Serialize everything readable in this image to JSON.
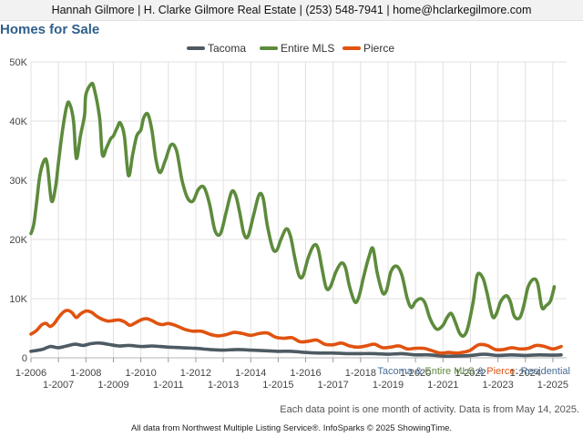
{
  "header": {
    "contact_line": "Hannah Gilmore | H. Clarke Gilmore Real Estate | (253) 548-7941 | home@hclarkegilmore.com"
  },
  "chart_title": "Homes for Sale",
  "subtitle": {
    "part1": "Tacoma",
    "amp1": " & ",
    "part2": "Entire MLS",
    "amp2": " & ",
    "part3": "Pierce",
    "suffix": ": Residential"
  },
  "footnote": "Each data point is one month of activity. Data is from May 14, 2025.",
  "credit": "All data from Northwest Multiple Listing Service®. InfoSparks © 2025 ShowingTime.",
  "colors": {
    "tacoma": "#4d5a63",
    "entire_mls": "#5d8b3c",
    "pierce": "#e0530f",
    "subtitle_blue": "#466d96",
    "grid": "#e0e0e0"
  },
  "chart_data": {
    "type": "line",
    "title": "Homes for Sale",
    "x_unit": "year",
    "xlim": [
      2006.0,
      2025.5
    ],
    "ylim": [
      0,
      50000
    ],
    "y_ticks": [
      0,
      10000,
      20000,
      30000,
      40000,
      50000
    ],
    "y_tick_labels": [
      "0",
      "10K",
      "20K",
      "30K",
      "40K",
      "50K"
    ],
    "x_ticks_top": [
      {
        "x": 2006,
        "label": "1-2006"
      },
      {
        "x": 2008,
        "label": "1-2008"
      },
      {
        "x": 2010,
        "label": "1-2010"
      },
      {
        "x": 2012,
        "label": "1-2012"
      },
      {
        "x": 2014,
        "label": "1-2014"
      },
      {
        "x": 2016,
        "label": "1-2016"
      },
      {
        "x": 2018,
        "label": "1-2018"
      },
      {
        "x": 2020,
        "label": "1-2020"
      },
      {
        "x": 2022,
        "label": "1-2022"
      },
      {
        "x": 2024,
        "label": "1-2024"
      }
    ],
    "x_ticks_bottom": [
      {
        "x": 2007,
        "label": "1-2007"
      },
      {
        "x": 2009,
        "label": "1-2009"
      },
      {
        "x": 2011,
        "label": "1-2011"
      },
      {
        "x": 2013,
        "label": "1-2013"
      },
      {
        "x": 2015,
        "label": "1-2015"
      },
      {
        "x": 2017,
        "label": "1-2017"
      },
      {
        "x": 2019,
        "label": "1-2019"
      },
      {
        "x": 2021,
        "label": "1-2021"
      },
      {
        "x": 2023,
        "label": "1-2023"
      },
      {
        "x": 2025,
        "label": "1-2025"
      }
    ],
    "grid": true,
    "legend_position": "top",
    "series": [
      {
        "name": "Tacoma",
        "color": "#4d5a63",
        "points": [
          [
            2006.0,
            1100
          ],
          [
            2006.4,
            1400
          ],
          [
            2006.7,
            1900
          ],
          [
            2007.0,
            1700
          ],
          [
            2007.3,
            2000
          ],
          [
            2007.6,
            2300
          ],
          [
            2007.9,
            2100
          ],
          [
            2008.2,
            2400
          ],
          [
            2008.5,
            2500
          ],
          [
            2008.8,
            2300
          ],
          [
            2009.2,
            2000
          ],
          [
            2009.6,
            2100
          ],
          [
            2010.0,
            1900
          ],
          [
            2010.4,
            2000
          ],
          [
            2010.7,
            1900
          ],
          [
            2011.0,
            1800
          ],
          [
            2011.5,
            1700
          ],
          [
            2012.0,
            1600
          ],
          [
            2012.5,
            1400
          ],
          [
            2013.0,
            1300
          ],
          [
            2013.5,
            1400
          ],
          [
            2014.0,
            1300
          ],
          [
            2014.5,
            1200
          ],
          [
            2015.0,
            1100
          ],
          [
            2015.5,
            1100
          ],
          [
            2016.0,
            900
          ],
          [
            2016.5,
            800
          ],
          [
            2017.0,
            800
          ],
          [
            2017.5,
            700
          ],
          [
            2018.0,
            700
          ],
          [
            2018.5,
            700
          ],
          [
            2019.0,
            600
          ],
          [
            2019.5,
            700
          ],
          [
            2020.0,
            500
          ],
          [
            2020.5,
            500
          ],
          [
            2021.0,
            300
          ],
          [
            2021.5,
            300
          ],
          [
            2022.0,
            400
          ],
          [
            2022.5,
            600
          ],
          [
            2023.0,
            400
          ],
          [
            2023.5,
            500
          ],
          [
            2024.0,
            400
          ],
          [
            2024.5,
            500
          ],
          [
            2025.0,
            450
          ],
          [
            2025.3,
            500
          ]
        ]
      },
      {
        "name": "Entire MLS",
        "color": "#5d8b3c",
        "points": [
          [
            2006.0,
            21000
          ],
          [
            2006.1,
            22500
          ],
          [
            2006.2,
            26000
          ],
          [
            2006.33,
            31000
          ],
          [
            2006.5,
            33500
          ],
          [
            2006.6,
            32500
          ],
          [
            2006.75,
            26500
          ],
          [
            2006.9,
            29000
          ],
          [
            2007.0,
            33000
          ],
          [
            2007.15,
            38500
          ],
          [
            2007.3,
            42500
          ],
          [
            2007.4,
            43000
          ],
          [
            2007.55,
            40000
          ],
          [
            2007.65,
            33700
          ],
          [
            2007.8,
            37500
          ],
          [
            2007.95,
            41000
          ],
          [
            2008.0,
            44500
          ],
          [
            2008.2,
            46300
          ],
          [
            2008.3,
            45500
          ],
          [
            2008.5,
            40500
          ],
          [
            2008.6,
            34300
          ],
          [
            2008.75,
            35500
          ],
          [
            2008.9,
            37000
          ],
          [
            2009.0,
            37500
          ],
          [
            2009.15,
            39000
          ],
          [
            2009.25,
            39700
          ],
          [
            2009.4,
            37500
          ],
          [
            2009.55,
            30800
          ],
          [
            2009.7,
            34300
          ],
          [
            2009.85,
            37500
          ],
          [
            2010.0,
            38500
          ],
          [
            2010.1,
            40500
          ],
          [
            2010.25,
            41200
          ],
          [
            2010.4,
            38500
          ],
          [
            2010.55,
            33500
          ],
          [
            2010.7,
            31300
          ],
          [
            2010.9,
            33500
          ],
          [
            2011.1,
            36000
          ],
          [
            2011.3,
            35000
          ],
          [
            2011.5,
            30000
          ],
          [
            2011.7,
            27000
          ],
          [
            2011.9,
            26500
          ],
          [
            2012.1,
            28500
          ],
          [
            2012.3,
            28800
          ],
          [
            2012.5,
            26000
          ],
          [
            2012.7,
            21500
          ],
          [
            2012.9,
            21000
          ],
          [
            2013.1,
            24500
          ],
          [
            2013.3,
            28000
          ],
          [
            2013.45,
            27500
          ],
          [
            2013.6,
            24500
          ],
          [
            2013.75,
            21000
          ],
          [
            2013.9,
            20500
          ],
          [
            2014.1,
            24000
          ],
          [
            2014.3,
            27500
          ],
          [
            2014.45,
            27000
          ],
          [
            2014.6,
            22500
          ],
          [
            2014.8,
            18500
          ],
          [
            2014.95,
            18200
          ],
          [
            2015.1,
            20000
          ],
          [
            2015.3,
            21800
          ],
          [
            2015.45,
            20500
          ],
          [
            2015.6,
            17000
          ],
          [
            2015.75,
            14000
          ],
          [
            2015.9,
            13800
          ],
          [
            2016.1,
            17000
          ],
          [
            2016.3,
            19000
          ],
          [
            2016.45,
            18500
          ],
          [
            2016.6,
            15000
          ],
          [
            2016.75,
            11800
          ],
          [
            2016.9,
            12000
          ],
          [
            2017.1,
            14500
          ],
          [
            2017.3,
            16000
          ],
          [
            2017.45,
            15200
          ],
          [
            2017.6,
            12000
          ],
          [
            2017.8,
            9400
          ],
          [
            2017.95,
            10500
          ],
          [
            2018.1,
            13500
          ],
          [
            2018.3,
            17000
          ],
          [
            2018.45,
            18500
          ],
          [
            2018.6,
            14500
          ],
          [
            2018.8,
            11000
          ],
          [
            2018.95,
            11500
          ],
          [
            2019.1,
            14500
          ],
          [
            2019.3,
            15500
          ],
          [
            2019.5,
            14000
          ],
          [
            2019.7,
            10000
          ],
          [
            2019.85,
            8500
          ],
          [
            2020.0,
            9500
          ],
          [
            2020.2,
            10000
          ],
          [
            2020.35,
            9200
          ],
          [
            2020.5,
            7000
          ],
          [
            2020.65,
            5500
          ],
          [
            2020.8,
            4800
          ],
          [
            2021.0,
            5500
          ],
          [
            2021.15,
            6800
          ],
          [
            2021.3,
            7500
          ],
          [
            2021.45,
            6000
          ],
          [
            2021.6,
            4200
          ],
          [
            2021.75,
            3700
          ],
          [
            2021.9,
            5000
          ],
          [
            2022.1,
            9500
          ],
          [
            2022.25,
            14000
          ],
          [
            2022.45,
            13500
          ],
          [
            2022.6,
            11000
          ],
          [
            2022.8,
            7000
          ],
          [
            2022.95,
            7500
          ],
          [
            2023.1,
            9500
          ],
          [
            2023.3,
            10500
          ],
          [
            2023.45,
            9500
          ],
          [
            2023.6,
            7000
          ],
          [
            2023.8,
            6800
          ],
          [
            2023.95,
            9000
          ],
          [
            2024.1,
            12000
          ],
          [
            2024.3,
            13300
          ],
          [
            2024.45,
            12500
          ],
          [
            2024.6,
            8500
          ],
          [
            2024.75,
            8800
          ],
          [
            2024.9,
            9500
          ],
          [
            2025.0,
            11000
          ],
          [
            2025.05,
            12000
          ]
        ]
      },
      {
        "name": "Pierce",
        "color": "#e0530f",
        "points": [
          [
            2006.0,
            4000
          ],
          [
            2006.2,
            4600
          ],
          [
            2006.4,
            5600
          ],
          [
            2006.55,
            5800
          ],
          [
            2006.7,
            5300
          ],
          [
            2006.85,
            5800
          ],
          [
            2007.0,
            6800
          ],
          [
            2007.2,
            7800
          ],
          [
            2007.35,
            8000
          ],
          [
            2007.5,
            7600
          ],
          [
            2007.65,
            6800
          ],
          [
            2007.8,
            7400
          ],
          [
            2008.0,
            7900
          ],
          [
            2008.2,
            7700
          ],
          [
            2008.4,
            7000
          ],
          [
            2008.6,
            6500
          ],
          [
            2008.8,
            6200
          ],
          [
            2009.0,
            6300
          ],
          [
            2009.2,
            6400
          ],
          [
            2009.4,
            6100
          ],
          [
            2009.6,
            5500
          ],
          [
            2009.8,
            5900
          ],
          [
            2010.0,
            6400
          ],
          [
            2010.2,
            6600
          ],
          [
            2010.4,
            6300
          ],
          [
            2010.6,
            5800
          ],
          [
            2010.8,
            5600
          ],
          [
            2011.0,
            5800
          ],
          [
            2011.3,
            5400
          ],
          [
            2011.6,
            4800
          ],
          [
            2011.9,
            4500
          ],
          [
            2012.2,
            4500
          ],
          [
            2012.5,
            4000
          ],
          [
            2012.8,
            3700
          ],
          [
            2013.1,
            3900
          ],
          [
            2013.4,
            4300
          ],
          [
            2013.7,
            4100
          ],
          [
            2014.0,
            3800
          ],
          [
            2014.3,
            4100
          ],
          [
            2014.6,
            4200
          ],
          [
            2014.9,
            3500
          ],
          [
            2015.2,
            3300
          ],
          [
            2015.5,
            3400
          ],
          [
            2015.8,
            2700
          ],
          [
            2016.1,
            2800
          ],
          [
            2016.4,
            3000
          ],
          [
            2016.7,
            2300
          ],
          [
            2017.0,
            2200
          ],
          [
            2017.3,
            2500
          ],
          [
            2017.6,
            2000
          ],
          [
            2017.9,
            1800
          ],
          [
            2018.2,
            2000
          ],
          [
            2018.5,
            2300
          ],
          [
            2018.8,
            1700
          ],
          [
            2019.1,
            1800
          ],
          [
            2019.4,
            2000
          ],
          [
            2019.7,
            1500
          ],
          [
            2020.0,
            1600
          ],
          [
            2020.3,
            1600
          ],
          [
            2020.6,
            1200
          ],
          [
            2020.9,
            800
          ],
          [
            2021.2,
            900
          ],
          [
            2021.5,
            800
          ],
          [
            2021.8,
            1000
          ],
          [
            2022.0,
            1300
          ],
          [
            2022.3,
            2200
          ],
          [
            2022.6,
            2100
          ],
          [
            2022.9,
            1400
          ],
          [
            2023.2,
            1400
          ],
          [
            2023.5,
            1700
          ],
          [
            2023.8,
            1500
          ],
          [
            2024.1,
            1600
          ],
          [
            2024.4,
            2100
          ],
          [
            2024.7,
            1900
          ],
          [
            2025.0,
            1500
          ],
          [
            2025.3,
            1900
          ]
        ]
      }
    ]
  }
}
